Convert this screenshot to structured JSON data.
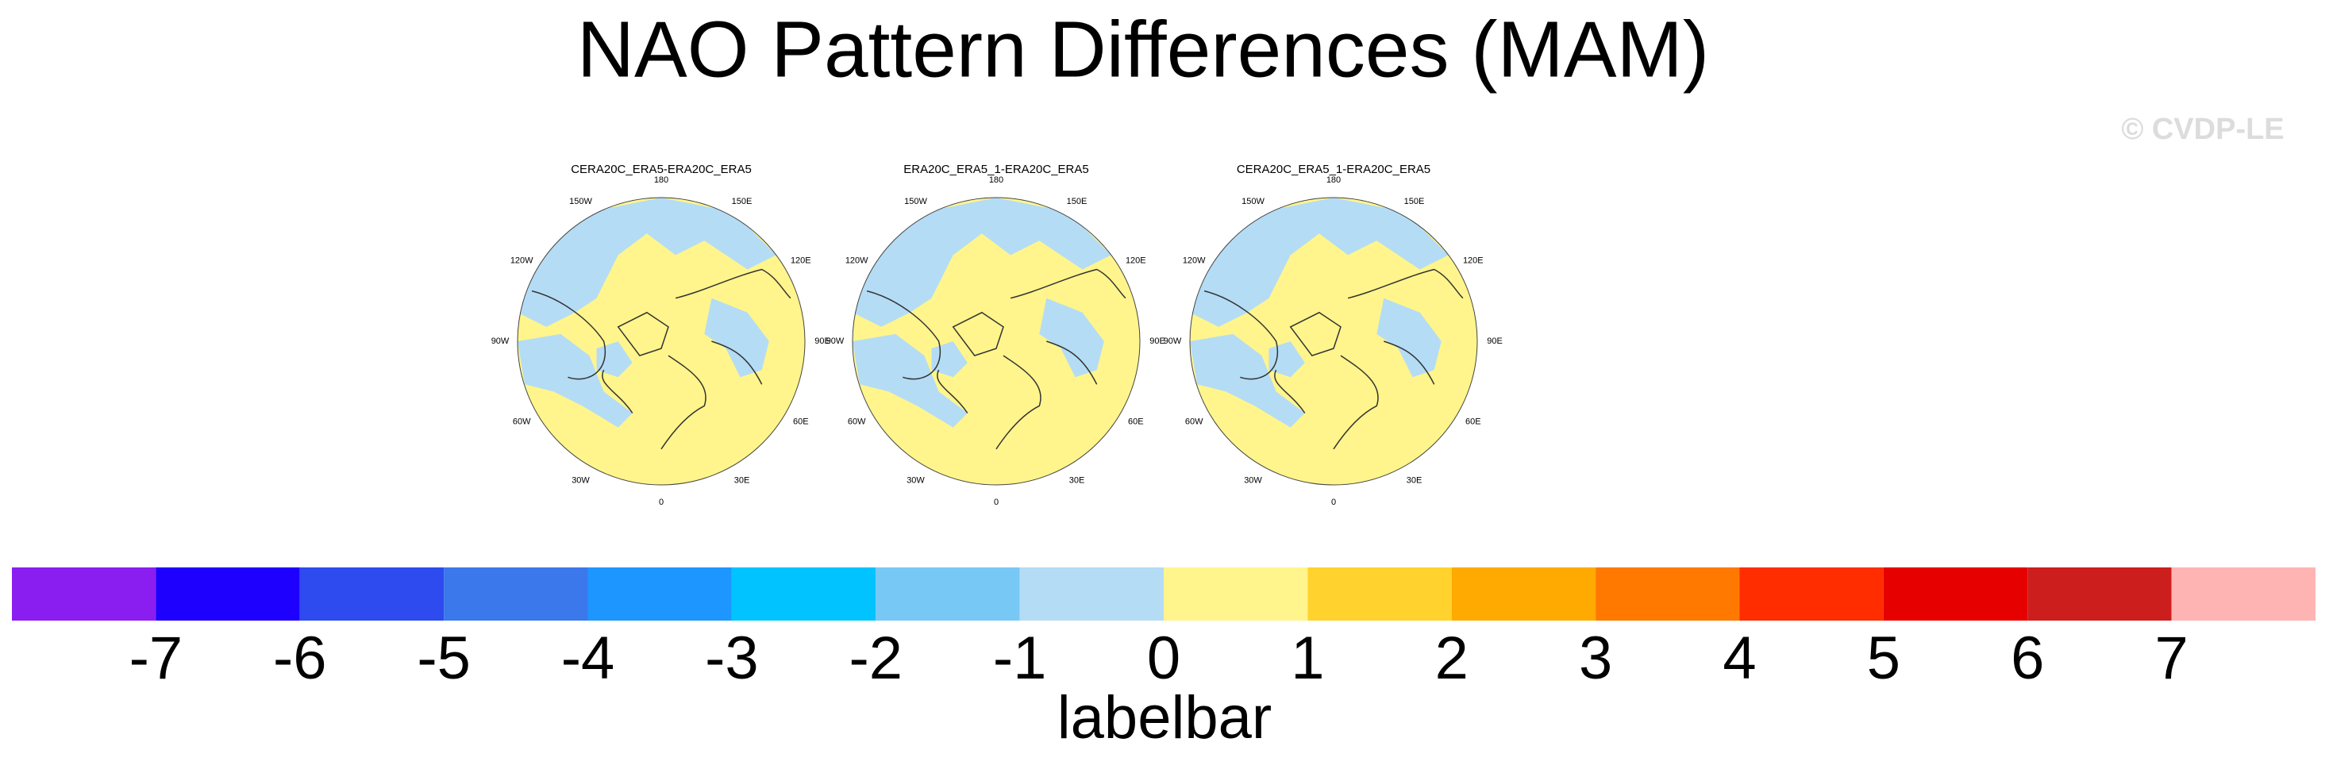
{
  "title": "NAO Pattern Differences (MAM)",
  "watermark": "© CVDP-LE",
  "maps": [
    {
      "title": "CERA20C_ERA5-ERA20C_ERA5"
    },
    {
      "title": "ERA20C_ERA5_1-ERA20C_ERA5"
    },
    {
      "title": "CERA20C_ERA5_1-ERA20C_ERA5"
    }
  ],
  "lon_labels": [
    "180",
    "150E",
    "120E",
    "90E",
    "60E",
    "30E",
    "0",
    "30W",
    "60W",
    "90W",
    "120W",
    "150W"
  ],
  "labelbar": {
    "title": "labelbar",
    "colors": [
      "#8a1ef0",
      "#1e00ff",
      "#2d4bef",
      "#3a78eb",
      "#1e96ff",
      "#00c3ff",
      "#78c8f5",
      "#b4dcf5",
      "#fff58c",
      "#ffd22d",
      "#ffaa00",
      "#ff7800",
      "#ff2d00",
      "#e60000",
      "#cd1e1e",
      "#ffb4b4"
    ],
    "labels": [
      -7,
      -6,
      -5,
      -4,
      -3,
      -2,
      -1,
      0,
      1,
      2,
      3,
      4,
      5,
      6,
      7
    ]
  }
}
